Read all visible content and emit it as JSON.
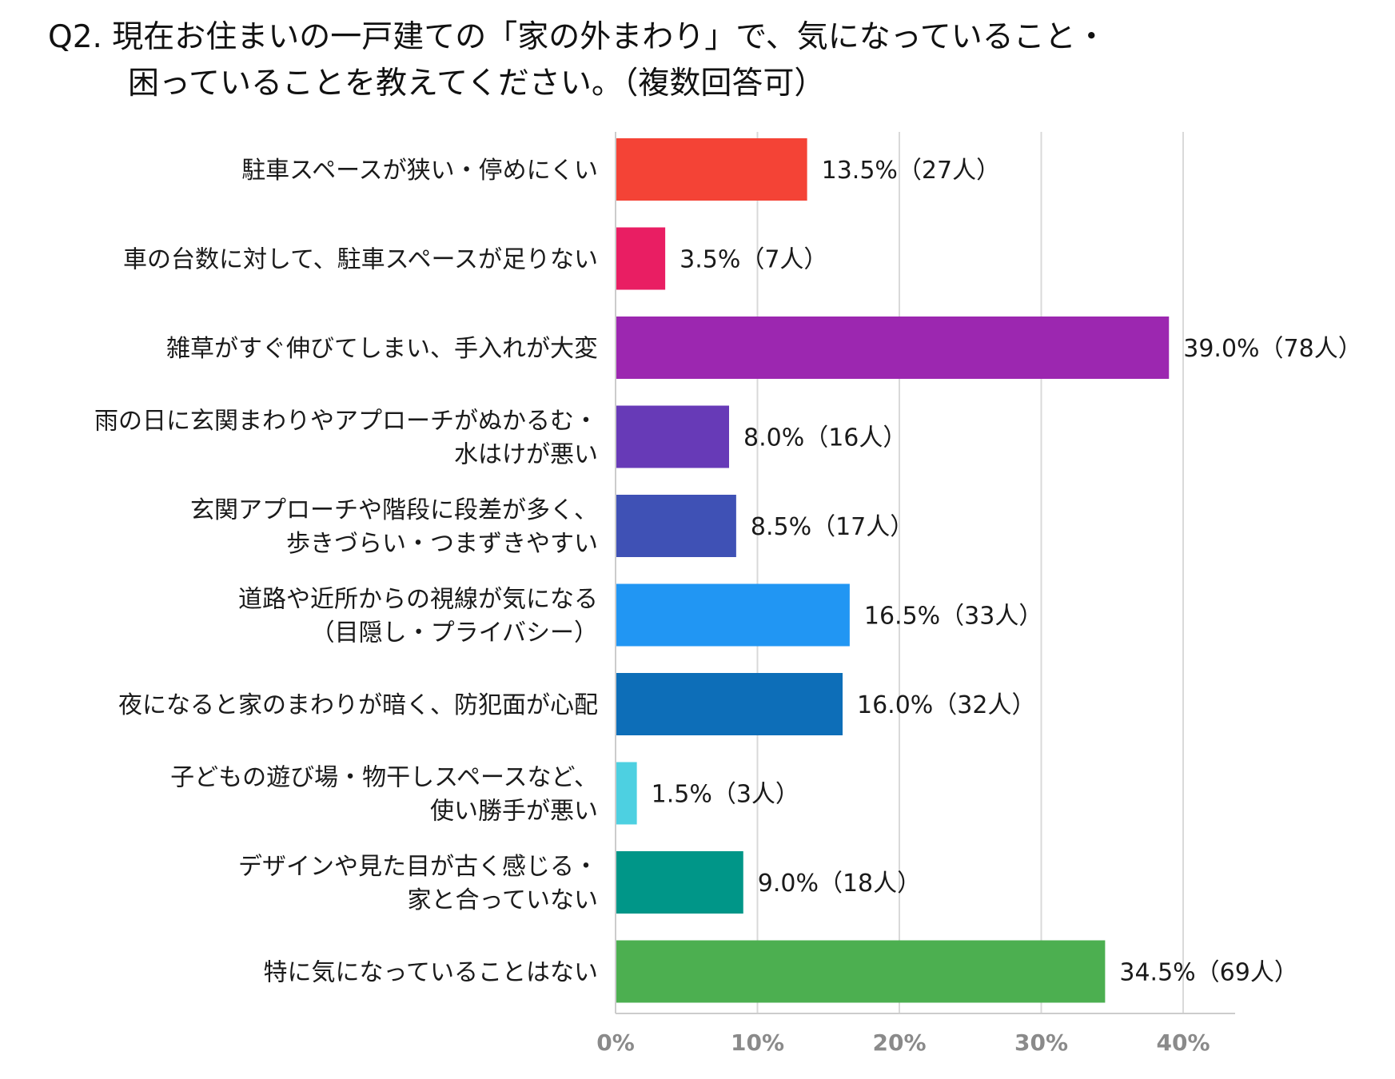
{
  "chart_data": {
    "type": "bar",
    "orientation": "horizontal",
    "title_line1": "Q2. 現在お住まいの一戸建ての「家の外まわり」で、気になっていること・",
    "title_line2": "困っていることを教えてください。（複数回答可）",
    "categories": [
      [
        "駐車スペースが狭い・停めにくい"
      ],
      [
        "車の台数に対して、駐車スペースが足りない"
      ],
      [
        "雑草がすぐ伸びてしまい、手入れが大変"
      ],
      [
        "雨の日に玄関まわりやアプローチがぬかるむ・",
        "水はけが悪い"
      ],
      [
        "玄関アプローチや階段に段差が多く、",
        "歩きづらい・つまずきやすい"
      ],
      [
        "道路や近所からの視線が気になる",
        "（目隠し・プライバシー）"
      ],
      [
        "夜になると家のまわりが暗く、防犯面が心配"
      ],
      [
        "子どもの遊び場・物干しスペースなど、",
        "使い勝手が悪い"
      ],
      [
        "デザインや見た目が古く感じる・",
        "家と合っていない"
      ],
      [
        "特に気になっていることはない"
      ]
    ],
    "values": [
      13.5,
      3.5,
      39.0,
      8.0,
      8.5,
      16.5,
      16.0,
      1.5,
      9.0,
      34.5
    ],
    "value_labels": [
      "13.5%（27人）",
      "3.5%（7人）",
      "39.0%（78人）",
      "8.0%（16人）",
      "8.5%（17人）",
      "16.5%（33人）",
      "16.0%（32人）",
      "1.5%（3人）",
      "9.0%（18人）",
      "34.5%（69人）"
    ],
    "colors": [
      "#f44336",
      "#e91e63",
      "#9c27b0",
      "#673ab7",
      "#3f51b5",
      "#2196f3",
      "#0d6eb8",
      "#4dd0e1",
      "#009688",
      "#4caf50"
    ],
    "xlim": [
      0,
      44
    ],
    "xticks": [
      0,
      10,
      20,
      30,
      40
    ],
    "xtick_labels": [
      "0%",
      "10%",
      "20%",
      "30%",
      "40%"
    ],
    "grid": true,
    "xlabel": "",
    "ylabel": ""
  }
}
